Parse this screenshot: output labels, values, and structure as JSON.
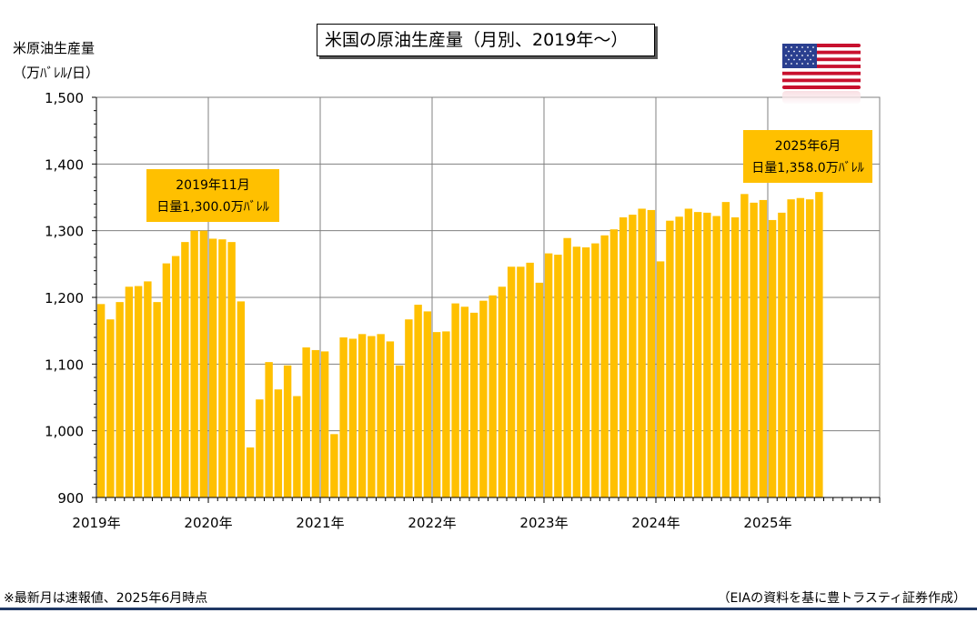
{
  "title": "米国の原油生産量（月別、2019年〜）",
  "y_axis_title_line1": "米原油生産量",
  "y_axis_title_line2": "（万ﾊﾞﾚﾙ/日）",
  "annotation_peak": {
    "line1": "2019年11月",
    "line2": "日量1,300.0万ﾊﾞﾚﾙ"
  },
  "annotation_latest": {
    "line1": "2025年6月",
    "line2": "日量1,358.0万ﾊﾞﾚﾙ"
  },
  "footnote": "※最新月は速報値、2025年6月時点",
  "source": "（EIAの資料を基に豊トラスティ証券作成）",
  "colors": {
    "bar": "#FFC000",
    "grid": "#808080",
    "rule": "#1F3864"
  },
  "flag_icon": "us-flag-icon",
  "chart_data": {
    "type": "bar",
    "ylim": [
      900,
      1500
    ],
    "yticks": [
      "900",
      "1,000",
      "1,100",
      "1,200",
      "1,300",
      "1,400",
      "1,500"
    ],
    "ytick_values": [
      900,
      1000,
      1100,
      1200,
      1300,
      1400,
      1500
    ],
    "xtick_labels": [
      "2019年",
      "2020年",
      "2021年",
      "2022年",
      "2023年",
      "2024年",
      "2025年"
    ],
    "grid": true,
    "total_months": 84,
    "start": "2019-01",
    "values": [
      1190,
      1167,
      1193,
      1216,
      1217,
      1224,
      1193,
      1251,
      1262,
      1283,
      1300,
      1300,
      1288,
      1287,
      1283,
      1194,
      975,
      1047,
      1103,
      1062,
      1098,
      1052,
      1125,
      1121,
      1119,
      995,
      1140,
      1138,
      1145,
      1142,
      1145,
      1134,
      1098,
      1167,
      1189,
      1179,
      1148,
      1149,
      1191,
      1186,
      1177,
      1195,
      1203,
      1216,
      1246,
      1246,
      1252,
      1222,
      1266,
      1264,
      1289,
      1276,
      1275,
      1281,
      1293,
      1302,
      1320,
      1324,
      1333,
      1331,
      1254,
      1315,
      1321,
      1333,
      1328,
      1327,
      1322,
      1343,
      1320,
      1355,
      1342,
      1346,
      1316,
      1327,
      1347,
      1349,
      1347,
      1358
    ]
  }
}
